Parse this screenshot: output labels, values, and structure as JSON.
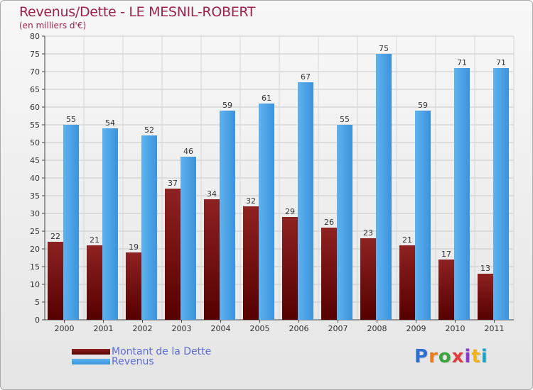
{
  "chart_data": {
    "type": "bar",
    "title": "Revenus/Dette - LE MESNIL-ROBERT",
    "subtitle": "(en milliers d'€)",
    "categories": [
      "2000",
      "2001",
      "2002",
      "2003",
      "2004",
      "2005",
      "2006",
      "2007",
      "2008",
      "2009",
      "2010",
      "2011"
    ],
    "series": [
      {
        "name": "Montant de la Dette",
        "values": [
          22,
          21,
          19,
          37,
          34,
          32,
          29,
          26,
          23,
          21,
          17,
          13
        ],
        "color": "#7a1010"
      },
      {
        "name": "Revenus",
        "values": [
          55,
          54,
          52,
          46,
          59,
          61,
          67,
          55,
          75,
          59,
          71,
          71
        ],
        "color": "#4aa3e6"
      }
    ],
    "ylim": [
      0,
      80
    ],
    "ytick_step": 5,
    "grid": true,
    "xlabel": "",
    "ylabel": ""
  },
  "logo": {
    "text": "Proxiti",
    "colors": [
      "#2d6fd1",
      "#ef7a1a",
      "#3aa53a",
      "#e23c3c",
      "#8a3cc8",
      "#f2b21a",
      "#1aa3c8"
    ]
  }
}
